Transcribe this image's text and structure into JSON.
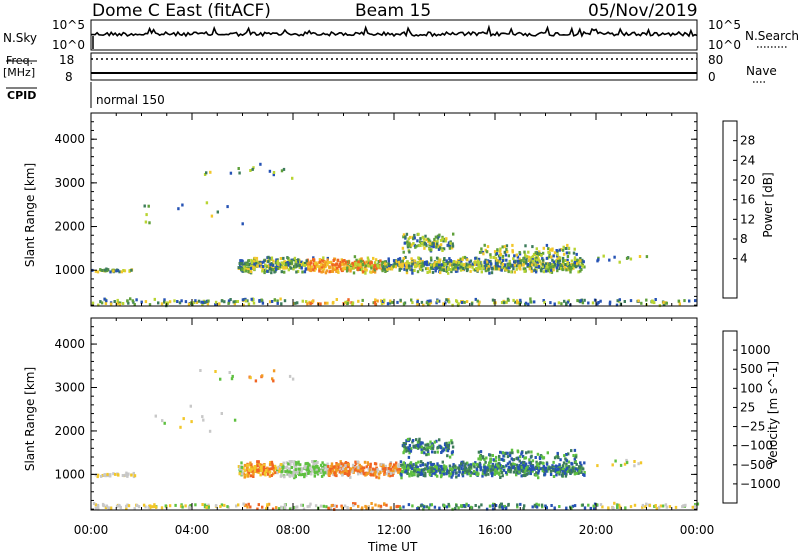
{
  "header": {
    "station": "Dome C East (fitACF)",
    "beam": "Beam 15",
    "date": "05/Nov/2019"
  },
  "top_panels": {
    "nsky_label": "N.Sky",
    "nsky_scale_top": "10^5",
    "nsky_scale_bottom": "10^0",
    "nsearch_label": "N.Search",
    "nsearch_scale_top": "10^5",
    "nsearch_scale_bottom": "10^0",
    "freq_label": "Freq.",
    "freq_unit": "[MHz]",
    "freq_scale_top": "18",
    "freq_scale_bottom": "8",
    "nave_label": "Nave",
    "nave_scale_top": "80",
    "nave_scale_bottom": "0",
    "cpid_label": "CPID",
    "cpid_value": "normal 150"
  },
  "chart_data": [
    {
      "type": "heatmap",
      "parameter": "Power",
      "ylabel": "Slant Range [km]",
      "xlabel": "Time UT",
      "x_ticks": [
        "00:00",
        "04:00",
        "08:00",
        "12:00",
        "16:00",
        "20:00",
        "00:00"
      ],
      "y_ticks": [
        1000,
        2000,
        3000,
        4000
      ],
      "ylim": [
        180,
        4600
      ],
      "xlim_hours": [
        0,
        24
      ],
      "colorbar": {
        "label": "Power [dB]",
        "ticks": [
          "4",
          "8",
          "12",
          "16",
          "20",
          "24",
          "28"
        ],
        "range": [
          0,
          32
        ],
        "colors": [
          "#1a14e0",
          "#2552b4",
          "#3d7c5a",
          "#5fa03a",
          "#b8d432",
          "#f2c72a",
          "#f29a22",
          "#f06422",
          "#e02020"
        ]
      },
      "features": [
        {
          "start_hour": 5.8,
          "end_hour": 19.5,
          "range_km": 1100,
          "description": "main echo band"
        },
        {
          "start_hour": 12.3,
          "end_hour": 14.3,
          "range_km": 1700
        },
        {
          "start_hour": 0.0,
          "end_hour": 1.7,
          "range_km": 1000
        }
      ]
    },
    {
      "type": "heatmap",
      "parameter": "Velocity",
      "ylabel": "Slant Range [km]",
      "xlabel": "Time UT",
      "x_ticks": [
        "00:00",
        "04:00",
        "08:00",
        "12:00",
        "16:00",
        "20:00",
        "00:00"
      ],
      "y_ticks": [
        1000,
        2000,
        3000,
        4000
      ],
      "ylim": [
        180,
        4600
      ],
      "xlim_hours": [
        0,
        24
      ],
      "colorbar": {
        "label": "Velocity [m s^-1]",
        "ticks": [
          "1000",
          "500",
          "100",
          "25",
          "−25",
          "−100",
          "−500",
          "−1000"
        ],
        "colors": [
          "#1a14e0",
          "#2552b4",
          "#3d7c5a",
          "#5fc040",
          "#c8c8c8",
          "#f2c72a",
          "#f29a22",
          "#f06422",
          "#e02020"
        ]
      },
      "features": [
        {
          "start_hour": 6.2,
          "end_hour": 7.2,
          "range_km": 1100,
          "description": "negative (orange) velocities"
        },
        {
          "start_hour": 9.3,
          "end_hour": 12.3,
          "range_km": 1100,
          "description": "negative (orange) velocities"
        },
        {
          "start_hour": 12.5,
          "end_hour": 19.5,
          "range_km": 1250,
          "description": "positive (green/blue) velocities"
        }
      ]
    }
  ]
}
